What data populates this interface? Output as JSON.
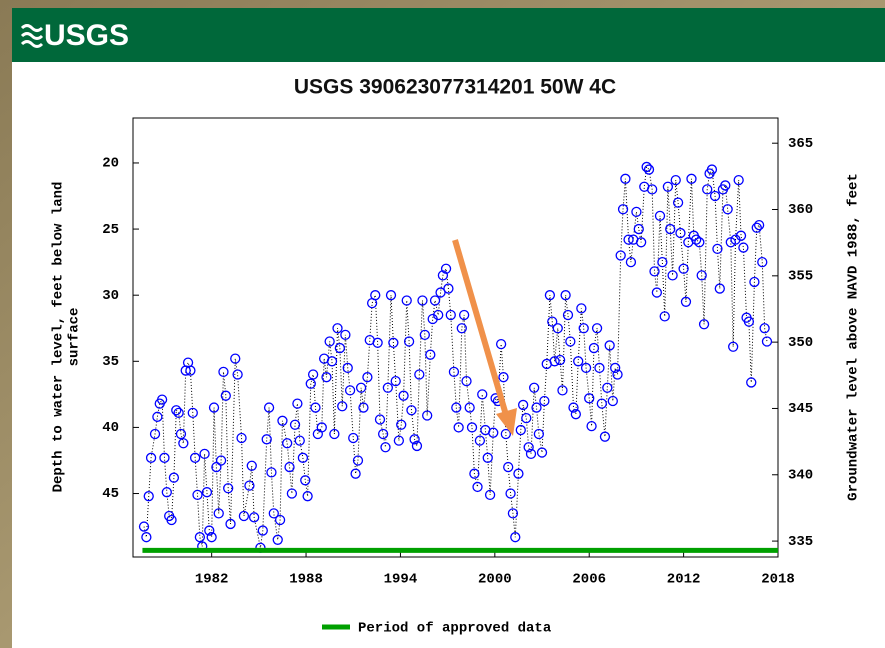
{
  "logo": "USGS",
  "chart_data": {
    "type": "scatter",
    "title": "USGS 390623077314201 50W 4C",
    "ylabel_lines": [
      "Depth to water level, feet below land",
      "surface"
    ],
    "y2label": "Groundwater level above NAVD 1988, feet",
    "xlim": [
      1977,
      2018
    ],
    "xticks": [
      1982,
      1988,
      1994,
      2000,
      2006,
      2012,
      2018
    ],
    "ylim": [
      16.6,
      49.8
    ],
    "y_inverted": true,
    "yticks": [
      20,
      25,
      30,
      35,
      40,
      45
    ],
    "y2lim": [
      333.8,
      366.9
    ],
    "y2ticks": [
      335,
      340,
      345,
      350,
      355,
      360,
      365
    ],
    "grid": false,
    "series": [
      {
        "color": "#0000ff",
        "x": [
          1977.7,
          1977.85,
          1978.0,
          1978.15,
          1978.4,
          1978.55,
          1978.7,
          1978.85,
          1979.0,
          1979.15,
          1979.3,
          1979.45,
          1979.6,
          1979.75,
          1979.9,
          1980.05,
          1980.2,
          1980.35,
          1980.5,
          1980.65,
          1980.8,
          1980.95,
          1981.1,
          1981.25,
          1981.4,
          1981.55,
          1981.7,
          1981.85,
          1982.0,
          1982.15,
          1982.3,
          1982.45,
          1982.6,
          1982.75,
          1982.9,
          1983.05,
          1983.2,
          1983.5,
          1983.65,
          1983.9,
          1984.05,
          1984.4,
          1984.55,
          1984.7,
          1985.1,
          1985.25,
          1985.5,
          1985.65,
          1985.8,
          1985.95,
          1986.2,
          1986.35,
          1986.5,
          1986.8,
          1986.95,
          1987.1,
          1987.3,
          1987.45,
          1987.6,
          1987.8,
          1987.95,
          1988.1,
          1988.3,
          1988.45,
          1988.6,
          1988.75,
          1989.0,
          1989.15,
          1989.3,
          1989.5,
          1989.65,
          1989.8,
          1990.0,
          1990.15,
          1990.3,
          1990.5,
          1990.65,
          1990.8,
          1991.0,
          1991.15,
          1991.3,
          1991.5,
          1991.65,
          1991.9,
          1992.05,
          1992.2,
          1992.4,
          1992.55,
          1992.7,
          1992.9,
          1993.05,
          1993.2,
          1993.4,
          1993.55,
          1993.7,
          1993.9,
          1994.05,
          1994.2,
          1994.4,
          1994.55,
          1994.7,
          1994.9,
          1995.05,
          1995.2,
          1995.4,
          1995.55,
          1995.7,
          1995.9,
          1996.05,
          1996.2,
          1996.4,
          1996.55,
          1996.7,
          1996.9,
          1997.05,
          1997.2,
          1997.4,
          1997.55,
          1997.7,
          1997.9,
          1998.05,
          1998.2,
          1998.4,
          1998.55,
          1998.7,
          1998.9,
          1999.05,
          1999.2,
          1999.4,
          1999.55,
          1999.7,
          1999.9,
          2000.05,
          2000.2,
          2000.4,
          2000.55,
          2000.7,
          2000.85,
          2001.0,
          2001.15,
          2001.3,
          2001.5,
          2001.65,
          2001.8,
          2002.0,
          2002.15,
          2002.3,
          2002.5,
          2002.65,
          2002.8,
          2003.0,
          2003.15,
          2003.3,
          2003.5,
          2003.65,
          2003.8,
          2004.0,
          2004.15,
          2004.3,
          2004.5,
          2004.65,
          2004.8,
          2005.0,
          2005.15,
          2005.3,
          2005.5,
          2005.65,
          2005.8,
          2006.0,
          2006.15,
          2006.3,
          2006.5,
          2006.65,
          2006.8,
          2007.0,
          2007.15,
          2007.3,
          2007.5,
          2007.65,
          2007.8,
          2008.0,
          2008.15,
          2008.3,
          2008.5,
          2008.65,
          2008.8,
          2009.0,
          2009.15,
          2009.3,
          2009.5,
          2009.65,
          2009.8,
          2010.0,
          2010.15,
          2010.3,
          2010.5,
          2010.65,
          2010.8,
          2011.0,
          2011.15,
          2011.3,
          2011.5,
          2011.65,
          2011.8,
          2012.0,
          2012.15,
          2012.3,
          2012.5,
          2012.65,
          2012.8,
          2013.0,
          2013.15,
          2013.3,
          2013.5,
          2013.65,
          2013.8,
          2014.0,
          2014.15,
          2014.3,
          2014.5,
          2014.65,
          2014.8,
          2015.0,
          2015.15,
          2015.3,
          2015.5,
          2015.65,
          2015.8,
          2016.0,
          2016.15,
          2016.3,
          2016.5,
          2016.65,
          2016.8,
          2017.0,
          2017.15,
          2017.3
        ],
        "values": [
          47.5,
          48.3,
          45.2,
          42.3,
          40.5,
          39.2,
          38.2,
          37.9,
          42.3,
          44.9,
          46.7,
          47.0,
          43.8,
          38.7,
          38.9,
          40.5,
          41.2,
          35.7,
          35.1,
          35.7,
          38.9,
          42.3,
          45.1,
          48.3,
          49.0,
          42.0,
          44.9,
          47.8,
          48.3,
          38.5,
          43.0,
          46.5,
          42.5,
          35.8,
          37.6,
          44.6,
          47.3,
          34.8,
          36.0,
          40.8,
          46.7,
          44.4,
          42.9,
          46.8,
          49.1,
          47.8,
          40.9,
          38.5,
          43.4,
          46.5,
          48.5,
          47.0,
          39.5,
          41.2,
          43.0,
          45.0,
          39.8,
          38.2,
          41.0,
          42.3,
          44.0,
          45.2,
          36.7,
          36.0,
          38.5,
          40.5,
          40.0,
          34.8,
          36.2,
          33.5,
          35.0,
          40.5,
          32.5,
          34.0,
          38.4,
          33.0,
          35.5,
          37.2,
          40.8,
          43.5,
          42.5,
          37.0,
          38.5,
          36.2,
          33.4,
          30.6,
          30.0,
          33.6,
          39.4,
          40.5,
          41.5,
          37.0,
          30.0,
          33.6,
          36.5,
          41.0,
          39.8,
          37.6,
          30.4,
          33.5,
          38.7,
          40.9,
          41.4,
          36.0,
          30.4,
          33.0,
          39.1,
          34.5,
          31.8,
          30.4,
          31.5,
          29.8,
          28.5,
          28.0,
          29.5,
          31.5,
          35.8,
          38.5,
          40.0,
          32.5,
          31.5,
          36.5,
          38.5,
          40.0,
          43.5,
          44.5,
          41.0,
          37.5,
          40.2,
          42.3,
          45.1,
          40.4,
          37.8,
          38.0,
          33.7,
          36.2,
          40.5,
          43.0,
          45.0,
          46.5,
          48.3,
          43.5,
          40.2,
          38.3,
          39.3,
          41.5,
          42.0,
          37.0,
          38.5,
          40.5,
          41.9,
          38.0,
          35.2,
          30.0,
          32.0,
          35.0,
          32.5,
          34.9,
          37.2,
          30.0,
          31.5,
          33.5,
          38.5,
          39.0,
          35.0,
          31.0,
          32.5,
          35.5,
          37.8,
          39.9,
          34.0,
          32.5,
          35.5,
          38.2,
          40.7,
          37.0,
          33.8,
          38.0,
          35.5,
          36.0,
          27.0,
          23.5,
          21.2,
          25.8,
          27.5,
          25.8,
          23.7,
          25.0,
          26.0,
          21.8,
          20.3,
          20.5,
          22.0,
          28.2,
          29.8,
          24.0,
          27.5,
          31.6,
          21.8,
          25.0,
          28.5,
          21.3,
          23.0,
          25.3,
          28.0,
          30.5,
          26.0,
          21.2,
          25.5,
          25.8,
          26.0,
          28.5,
          32.2,
          22.0,
          20.8,
          20.5,
          22.5,
          26.5,
          29.5,
          22.0,
          21.7,
          23.5,
          26.0,
          33.9,
          25.8,
          21.3,
          25.5,
          26.4,
          31.7,
          32.0,
          36.6,
          29.0,
          24.9,
          24.7,
          27.5,
          32.5,
          33.5
        ]
      },
      {
        "name": "Period of approved data",
        "color": "#00a000",
        "x": [
          1977.6,
          2018
        ],
        "values": [
          49.3,
          49.3
        ]
      }
    ]
  }
}
